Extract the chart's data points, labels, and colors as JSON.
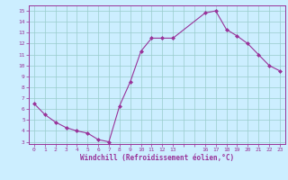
{
  "x": [
    0,
    1,
    2,
    3,
    4,
    5,
    6,
    7,
    8,
    9,
    10,
    11,
    12,
    13,
    16,
    17,
    18,
    19,
    20,
    21,
    22,
    23
  ],
  "y": [
    6.5,
    5.5,
    4.8,
    4.3,
    4.0,
    3.8,
    3.2,
    3.0,
    6.3,
    8.5,
    11.3,
    12.5,
    12.5,
    12.5,
    14.8,
    15.0,
    13.3,
    12.7,
    12.0,
    11.0,
    10.0,
    9.5
  ],
  "line_color": "#993399",
  "marker": "D",
  "marker_size": 2.0,
  "bg_color": "#cceeff",
  "grid_color": "#99cccc",
  "xlabel": "Windchill (Refroidissement éolien,°C)",
  "xlim": [
    -0.5,
    23.5
  ],
  "ylim": [
    2.8,
    15.5
  ],
  "yticks": [
    3,
    4,
    5,
    6,
    7,
    8,
    9,
    10,
    11,
    12,
    13,
    14,
    15
  ],
  "xticks": [
    0,
    1,
    2,
    3,
    4,
    5,
    6,
    7,
    8,
    9,
    10,
    11,
    12,
    13,
    16,
    17,
    18,
    19,
    20,
    21,
    22,
    23
  ],
  "tick_color": "#993399",
  "label_color": "#993399",
  "axis_color": "#993399",
  "xlabel_fontsize": 5.5,
  "tick_fontsize": 4.5
}
